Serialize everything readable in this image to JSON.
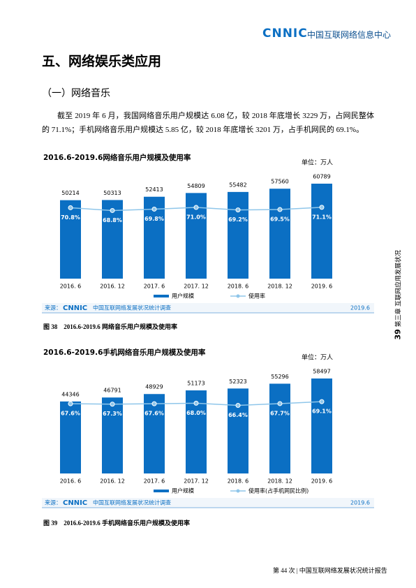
{
  "header": {
    "logo": "CNNIC",
    "org": "中国互联网络信息中心"
  },
  "heading": "五、网络娱乐类应用",
  "subheading": "（一）网络音乐",
  "paragraph": "截至 2019 年 6 月，我国网络音乐用户规模达 6.08 亿，较 2018 年底增长 3229 万，占网民整体的 71.1%；手机网络音乐用户规模达 5.85 亿，较 2018 年底增长 3201 万，占手机网民的 69.1%。",
  "side": {
    "page": "39",
    "chapter": "第三章 互联网应用发展状况"
  },
  "chart_data": [
    {
      "type": "bar",
      "title": "2016.6-2019.6网络音乐用户规模及使用率",
      "unit": "单位：万人",
      "categories": [
        "2016. 6",
        "2016. 12",
        "2017. 6",
        "2017. 12",
        "2018. 6",
        "2018. 12",
        "2019. 6"
      ],
      "series": [
        {
          "name": "用户规模",
          "color": "#0b6fc3",
          "values": [
            50214,
            50313,
            52413,
            54809,
            55482,
            57560,
            60789
          ]
        },
        {
          "name": "使用率",
          "type": "line",
          "color": "#8fc6ea",
          "values": [
            70.8,
            68.8,
            69.8,
            71.0,
            69.2,
            69.5,
            71.1
          ],
          "value_labels": [
            "70.8%",
            "68.8%",
            "69.8%",
            "71.0%",
            "69.2%",
            "69.5%",
            "71.1%"
          ]
        }
      ],
      "source": {
        "prefix": "来源：",
        "logo": "CNNIC",
        "text": "中国互联网络发展状况统计调查",
        "date": "2019.6"
      },
      "caption": "图 38　2016.6-2019.6 网络音乐用户规模及使用率"
    },
    {
      "type": "bar",
      "title": "2016.6-2019.6手机网络音乐用户规模及使用率",
      "unit": "单位：万人",
      "categories": [
        "2016. 6",
        "2016. 12",
        "2017. 6",
        "2017. 12",
        "2018. 6",
        "2018. 12",
        "2019. 6"
      ],
      "series": [
        {
          "name": "用户规模",
          "color": "#0b6fc3",
          "values": [
            44346,
            46791,
            48929,
            51173,
            52323,
            55296,
            58497
          ]
        },
        {
          "name": "使用率(占手机网民比例)",
          "type": "line",
          "color": "#8fc6ea",
          "values": [
            67.6,
            67.3,
            67.6,
            68.0,
            66.4,
            67.7,
            69.1
          ],
          "value_labels": [
            "67.6%",
            "67.3%",
            "67.6%",
            "68.0%",
            "66.4%",
            "67.7%",
            "69.1%"
          ]
        }
      ],
      "source": {
        "prefix": "来源：",
        "logo": "CNNIC",
        "text": "中国互联网络发展状况统计调查",
        "date": "2019.6"
      },
      "caption": "图 39　2016.6-2019.6 手机网络音乐用户规模及使用率"
    }
  ],
  "footer": "第 44 次 | 中国互联网络发展状况统计报告"
}
